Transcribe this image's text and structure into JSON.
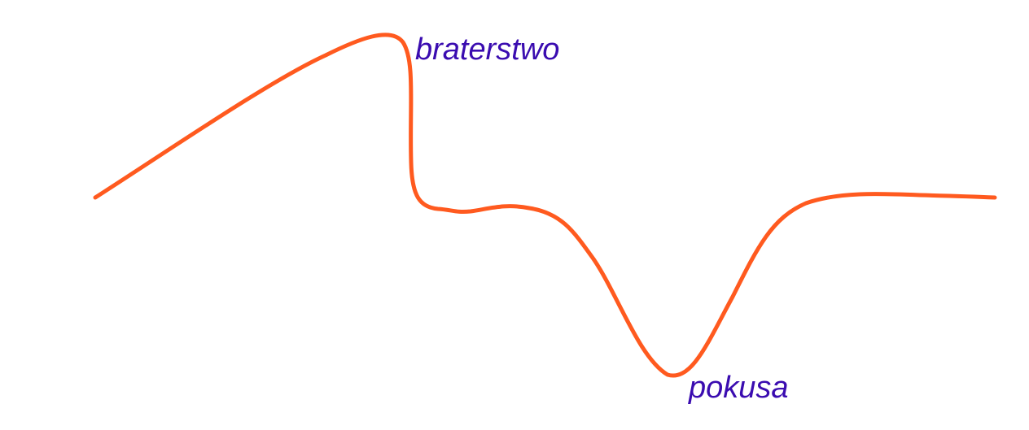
{
  "diagram": {
    "curve_color": "#ff5a1f",
    "label_color": "#3a0cb0",
    "labels": {
      "peak": "braterstwo",
      "trough": "pokusa"
    }
  }
}
